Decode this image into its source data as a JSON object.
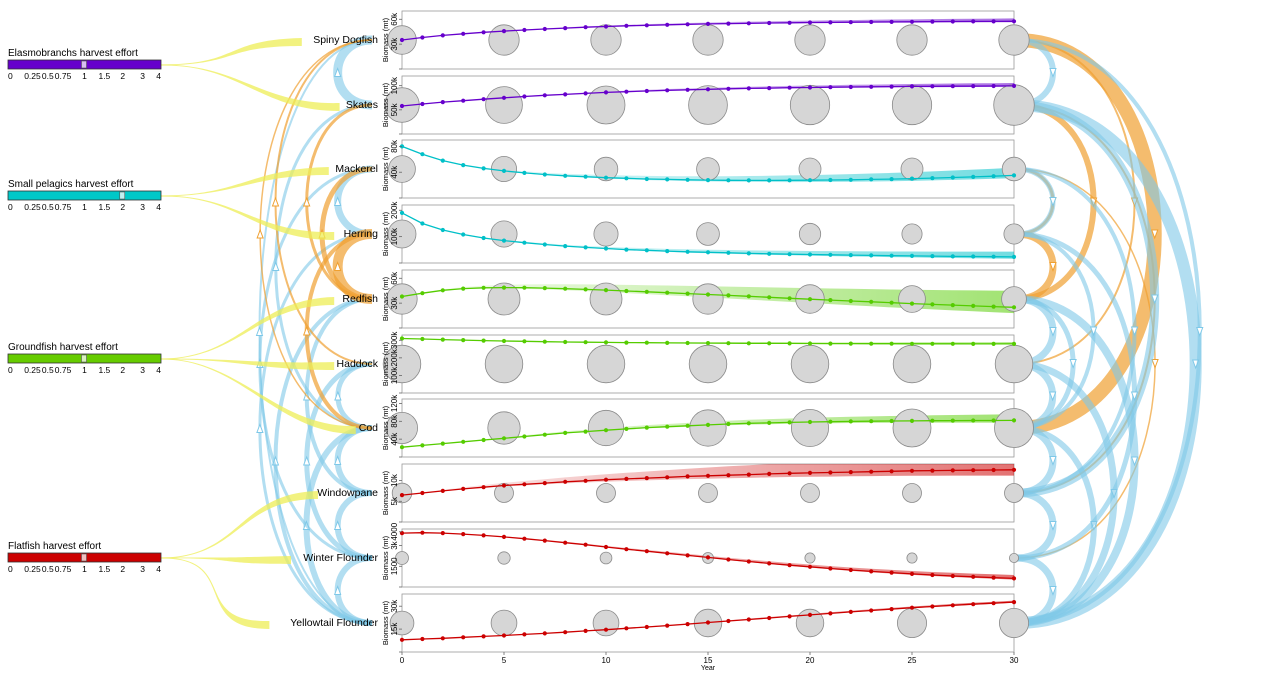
{
  "chart_data": {
    "type": "line",
    "x_label": "Year",
    "x_ticks": [
      0,
      5,
      10,
      15,
      20,
      25,
      30
    ],
    "xlim": [
      0,
      30
    ],
    "y_label": "Biomass (mt)",
    "harvest_sliders": [
      {
        "label": "Elasmobranchs harvest effort",
        "color": "#6600cc",
        "ticks": [
          "0",
          "0.25",
          "0.5",
          "0.75",
          "1",
          "1.5",
          "2",
          "3",
          "4"
        ],
        "value": 1,
        "species": [
          "spiny_dogfish",
          "skates"
        ]
      },
      {
        "label": "Small pelagics harvest effort",
        "color": "#00c8c8",
        "ticks": [
          "0",
          "0.25",
          "0.5",
          "0.75",
          "1",
          "1.5",
          "2",
          "3",
          "4"
        ],
        "value": 2,
        "species": [
          "mackerel",
          "herring"
        ]
      },
      {
        "label": "Groundfish harvest effort",
        "color": "#66cc00",
        "ticks": [
          "0",
          "0.25",
          "0.5",
          "0.75",
          "1",
          "1.5",
          "2",
          "3",
          "4"
        ],
        "value": 1,
        "species": [
          "redfish",
          "haddock",
          "cod"
        ]
      },
      {
        "label": "Flatfish harvest effort",
        "color": "#cc0000",
        "ticks": [
          "0",
          "0.25",
          "0.5",
          "0.75",
          "1",
          "1.5",
          "2",
          "3",
          "4"
        ],
        "value": 1,
        "species": [
          "windowpane",
          "winter_flounder",
          "yellowtail_flounder"
        ]
      }
    ],
    "series": [
      {
        "id": "spiny_dogfish",
        "name": "Spiny Dogfish",
        "color": "#6600cc",
        "y_ticks": [
          {
            "v": 30000,
            "t": "30k"
          },
          {
            "v": 60000,
            "t": "60k"
          }
        ],
        "ylim": [
          0,
          70000
        ],
        "values": [
          35000,
          38000,
          40500,
          42500,
          44300,
          45800,
          47100,
          48300,
          49400,
          50400,
          51300,
          52100,
          52800,
          53400,
          53900,
          54400,
          54800,
          55200,
          55500,
          55800,
          56100,
          56300,
          56500,
          56700,
          56900,
          57000,
          57200,
          57300,
          57400,
          57500,
          57600
        ],
        "band": 3500,
        "bubbles": [
          16000,
          18000,
          18000,
          18000,
          18000,
          18000,
          18000
        ]
      },
      {
        "id": "skates",
        "name": "Skates",
        "color": "#6600cc",
        "y_ticks": [
          {
            "v": 50000,
            "t": "50k"
          },
          {
            "v": 100000,
            "t": "100k"
          }
        ],
        "ylim": [
          0,
          120000
        ],
        "values": [
          58000,
          62000,
          66000,
          69000,
          72000,
          75000,
          77500,
          80000,
          82000,
          84000,
          86000,
          87500,
          89000,
          90500,
          91500,
          92500,
          93500,
          94300,
          95000,
          95700,
          96300,
          96800,
          97300,
          97700,
          98100,
          98400,
          98700,
          99000,
          99200,
          99400,
          99600
        ],
        "band": 6000,
        "bubbles": [
          40000,
          45000,
          48000,
          50000,
          52000,
          52000,
          55000
        ]
      },
      {
        "id": "mackerel",
        "name": "Mackerel",
        "color": "#00c0c8",
        "y_ticks": [
          {
            "v": 40000,
            "t": "40k"
          },
          {
            "v": 80000,
            "t": "80k"
          }
        ],
        "ylim": [
          0,
          90000
        ],
        "values": [
          80000,
          68000,
          58000,
          51000,
          46000,
          42000,
          39000,
          36500,
          34500,
          33000,
          31500,
          30500,
          29500,
          28800,
          28200,
          27800,
          27500,
          27300,
          27300,
          27400,
          27600,
          27900,
          28300,
          28800,
          29400,
          30100,
          30900,
          31800,
          32800,
          33900,
          35100
        ],
        "band": 12000,
        "bubbles": [
          18000,
          16000,
          14000,
          13000,
          12000,
          12000,
          14000
        ]
      },
      {
        "id": "herring",
        "name": "Herring",
        "color": "#00c0c8",
        "y_ticks": [
          {
            "v": 100000,
            "t": "100k"
          },
          {
            "v": 200000,
            "t": "200k"
          }
        ],
        "ylim": [
          0,
          220000
        ],
        "values": [
          190000,
          150000,
          125000,
          108000,
          95000,
          85000,
          77000,
          70000,
          64000,
          59000,
          55000,
          51000,
          48000,
          45000,
          42500,
          40500,
          38500,
          36500,
          35000,
          33500,
          32200,
          31000,
          29800,
          28800,
          27800,
          26900,
          26000,
          25200,
          24500,
          23800,
          23200
        ],
        "band": 20000,
        "bubbles": [
          48000,
          42000,
          36000,
          32000,
          28000,
          25000,
          25000
        ]
      },
      {
        "id": "redfish",
        "name": "Redfish",
        "color": "#55cc00",
        "y_ticks": [
          {
            "v": 30000,
            "t": "30k"
          },
          {
            "v": 60000,
            "t": "60k"
          }
        ],
        "ylim": [
          0,
          70000
        ],
        "values": [
          38000,
          42000,
          45500,
          47500,
          48500,
          48800,
          48600,
          48100,
          47400,
          46600,
          45700,
          44700,
          43700,
          42600,
          41500,
          40400,
          39300,
          38200,
          37000,
          35900,
          34800,
          33700,
          32600,
          31600,
          30500,
          29500,
          28500,
          27600,
          26700,
          25800,
          25000
        ],
        "band": 20000,
        "bubbles": [
          18000,
          20000,
          20000,
          18000,
          16000,
          14000,
          12000
        ]
      },
      {
        "id": "haddock",
        "name": "Haddock",
        "color": "#55cc00",
        "y_ticks": [
          {
            "v": 100000,
            "t": "100k"
          },
          {
            "v": 200000,
            "t": "200k"
          },
          {
            "v": 300000,
            "t": "300k"
          }
        ],
        "ylim": [
          0,
          330000
        ],
        "values": [
          310000,
          307000,
          304000,
          301000,
          298000,
          296000,
          294000,
          292000,
          290000,
          289000,
          288000,
          287000,
          286000,
          285000,
          284500,
          284000,
          283500,
          283000,
          282500,
          282000,
          281500,
          281000,
          280800,
          280600,
          280400,
          280200,
          280000,
          279800,
          279600,
          279400,
          279200
        ],
        "band": 9000,
        "bubbles": [
          130000,
          130000,
          130000,
          130000,
          130000,
          130000,
          130000
        ]
      },
      {
        "id": "cod",
        "name": "Cod",
        "color": "#55cc00",
        "y_ticks": [
          {
            "v": 40000,
            "t": "40k"
          },
          {
            "v": 80000,
            "t": "80k"
          },
          {
            "v": 120000,
            "t": "120k"
          }
        ],
        "ylim": [
          0,
          130000
        ],
        "values": [
          22000,
          26000,
          30000,
          34000,
          38000,
          42000,
          46000,
          50000,
          54000,
          57000,
          60000,
          63000,
          66000,
          68000,
          70000,
          72000,
          74000,
          75500,
          76500,
          77500,
          78500,
          79200,
          79800,
          80300,
          80700,
          81000,
          81300,
          81500,
          81700,
          81800,
          82000
        ],
        "band": 14000,
        "bubbles": [
          35000,
          38000,
          45000,
          48000,
          50000,
          52000,
          55000
        ]
      },
      {
        "id": "windowpane",
        "name": "Windowpane",
        "color": "#cc0000",
        "y_ticks": [
          {
            "v": 5000,
            "t": "5k"
          },
          {
            "v": 10000,
            "t": "10k"
          }
        ],
        "ylim": [
          0,
          14000
        ],
        "values": [
          6500,
          7000,
          7500,
          8000,
          8400,
          8800,
          9100,
          9400,
          9700,
          9950,
          10200,
          10400,
          10600,
          10800,
          11000,
          11150,
          11300,
          11450,
          11600,
          11750,
          11850,
          11950,
          12050,
          12150,
          12250,
          12350,
          12400,
          12450,
          12500,
          12550,
          12600
        ],
        "band": 4000,
        "bubbles": [
          1500,
          1400,
          1400,
          1400,
          1400,
          1400,
          1400
        ]
      },
      {
        "id": "winter_flounder",
        "name": "Winter Flounder",
        "color": "#cc0000",
        "y_ticks": [
          {
            "v": 1500,
            "t": "1500"
          },
          {
            "v": 3000,
            "t": "3k"
          },
          {
            "v": 4000,
            "t": "4000"
          }
        ],
        "ylim": [
          0,
          4200
        ],
        "values": [
          3900,
          3930,
          3900,
          3830,
          3740,
          3630,
          3500,
          3360,
          3210,
          3060,
          2900,
          2740,
          2590,
          2440,
          2290,
          2140,
          1990,
          1850,
          1710,
          1580,
          1460,
          1340,
          1230,
          1130,
          1040,
          950,
          870,
          800,
          740,
          680,
          620
        ],
        "band": 250,
        "bubbles": [
          200,
          180,
          160,
          140,
          120,
          120,
          100
        ]
      },
      {
        "id": "yellowtail_flounder",
        "name": "Yellowtail Flounder",
        "color": "#cc0000",
        "y_ticks": [
          {
            "v": 15000,
            "t": "15k"
          },
          {
            "v": 30000,
            "t": "30k"
          }
        ],
        "ylim": [
          0,
          38000
        ],
        "values": [
          8000,
          8500,
          9000,
          9600,
          10200,
          10800,
          11500,
          12200,
          13000,
          13800,
          14600,
          15500,
          16400,
          17300,
          18300,
          19300,
          20300,
          21300,
          22300,
          23300,
          24300,
          25300,
          26300,
          27200,
          28100,
          29000,
          29800,
          30600,
          31300,
          32000,
          32700
        ],
        "band": 1000,
        "bubbles": [
          6000,
          7000,
          7000,
          8000,
          8000,
          9000,
          9000
        ]
      }
    ]
  }
}
